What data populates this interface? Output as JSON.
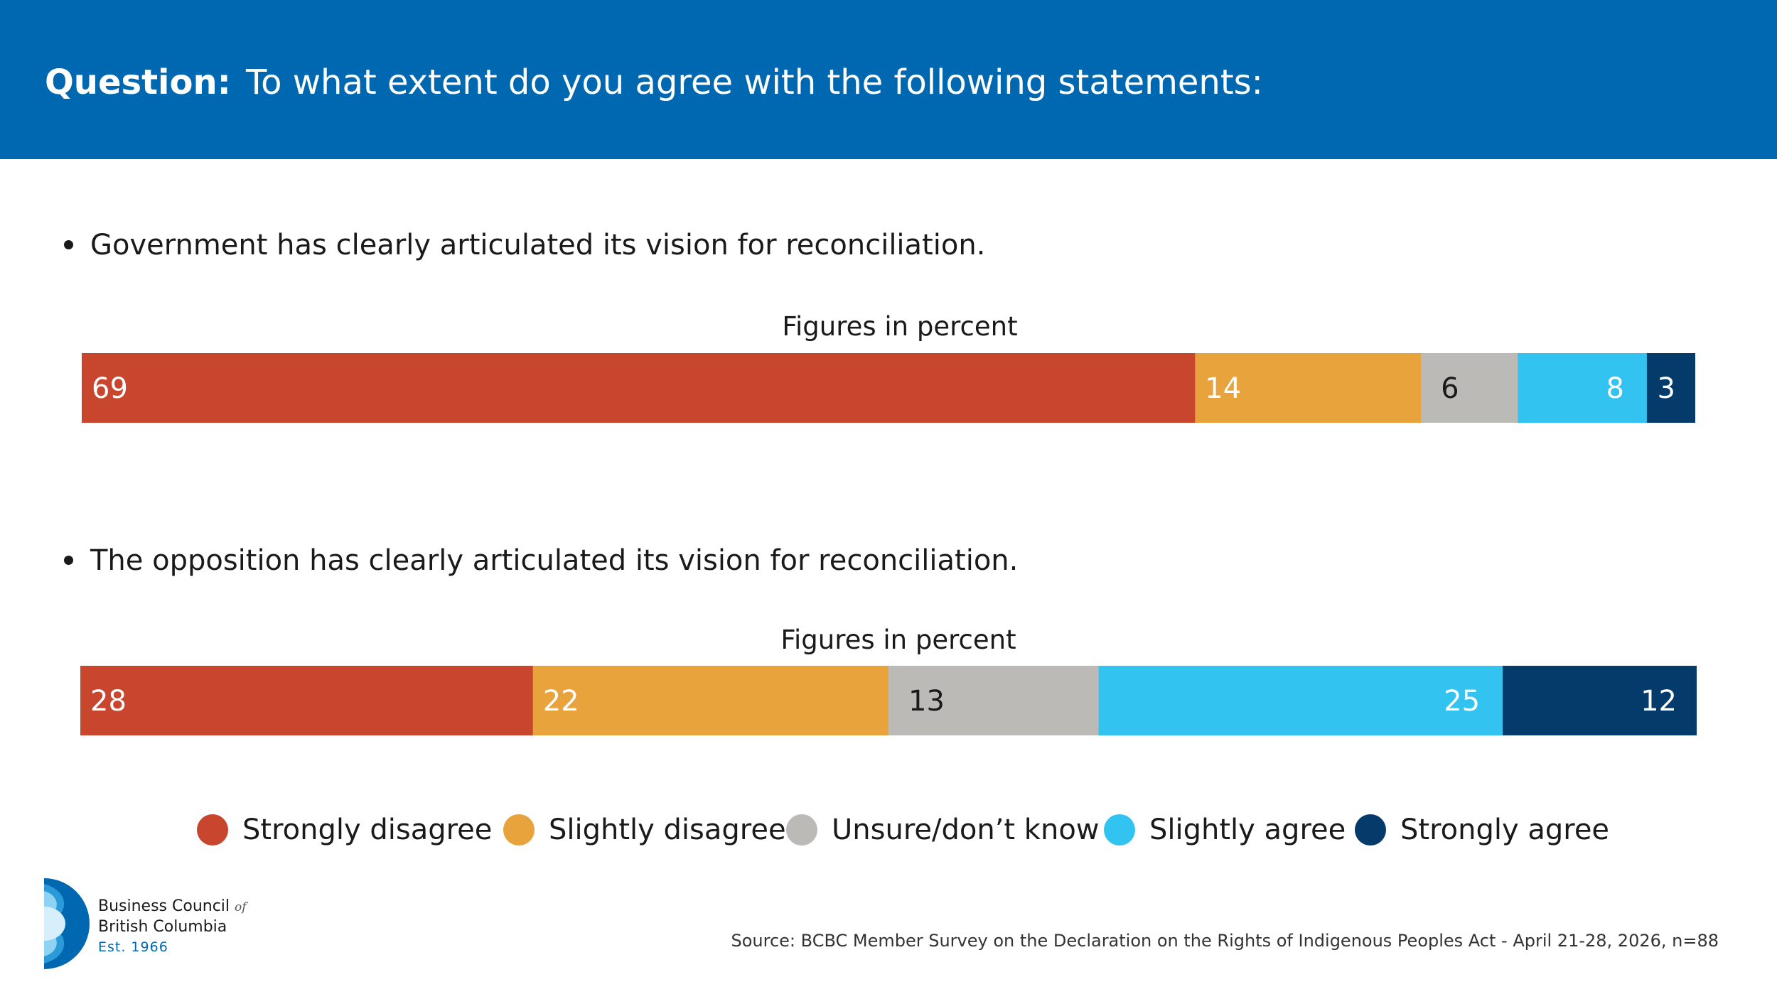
{
  "header": {
    "question_label": "Question:",
    "question_text": "To what extent do you agree with the following statements:"
  },
  "chart_data": [
    {
      "type": "bar",
      "orientation": "horizontal-stacked",
      "statement": "Government has clearly articulated its vision for reconciliation.",
      "subtitle": "Figures in percent",
      "categories": [
        "Strongly disagree",
        "Slightly disagree",
        "Unsure/don’t know",
        "Slightly agree",
        "Strongly agree"
      ],
      "values": [
        69,
        14,
        6,
        8,
        3
      ]
    },
    {
      "type": "bar",
      "orientation": "horizontal-stacked",
      "statement": "The opposition has clearly articulated its vision for reconciliation.",
      "subtitle": "Figures in percent",
      "categories": [
        "Strongly disagree",
        "Slightly disagree",
        "Unsure/don’t know",
        "Slightly agree",
        "Strongly agree"
      ],
      "values": [
        28,
        22,
        13,
        25,
        12
      ]
    }
  ],
  "legend": [
    {
      "label": "Strongly disagree",
      "color": "#c8452e"
    },
    {
      "label": "Slightly disagree",
      "color": "#e8a33c"
    },
    {
      "label": "Unsure/don’t know",
      "color": "#bcbab6"
    },
    {
      "label": "Slightly agree",
      "color": "#33c3f0"
    },
    {
      "label": "Strongly agree",
      "color": "#053b6b"
    }
  ],
  "label_colors": [
    "#ffffff",
    "#ffffff",
    "#1a1a1a",
    "#ffffff",
    "#ffffff"
  ],
  "logo": {
    "line1": "Business Council",
    "of": "of",
    "line2": "British Columbia",
    "est": "Est. 1966"
  },
  "source": "Source: BCBC Member Survey on the Declaration on the Rights of Indigenous Peoples Act - April 21-28, 2026, n=88"
}
